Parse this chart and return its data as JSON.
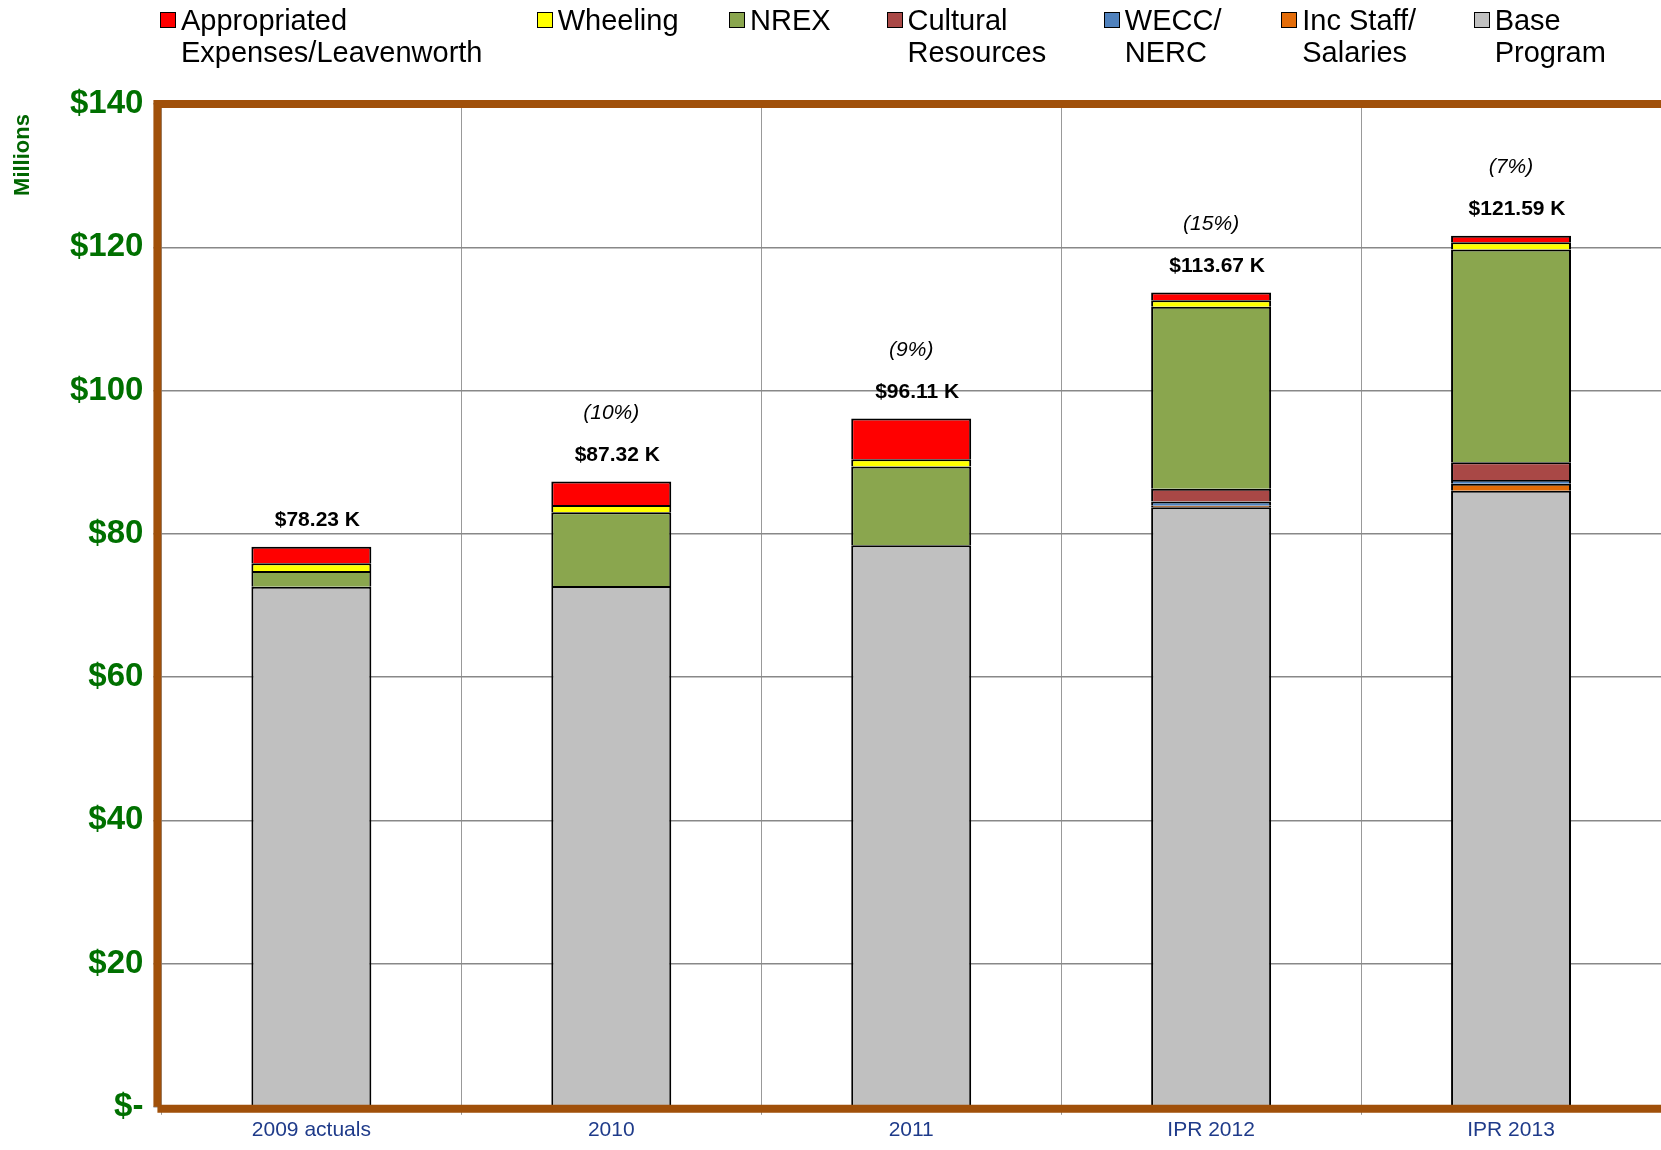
{
  "chart_data": {
    "type": "bar",
    "stacked": true,
    "ylabel": "Millions",
    "categories": [
      "2009 actuals",
      "2010",
      "2011",
      "IPR 2012",
      "IPR 2013"
    ],
    "series": [
      {
        "name": "Base Program",
        "color": "#c0c0c0",
        "values": [
          72.6,
          72.7,
          78.4,
          83.7,
          86.0
        ]
      },
      {
        "name": "Inc Staff/ Salaries",
        "color": "#e36c09",
        "values": [
          null,
          null,
          null,
          0.2,
          1.0
        ]
      },
      {
        "name": "WECC/ NERC",
        "color": "#4f81bd",
        "values": [
          null,
          null,
          null,
          0.6,
          0.5
        ]
      },
      {
        "name": "Cultural Resources",
        "color": "#a94846",
        "values": [
          null,
          null,
          null,
          1.8,
          2.5
        ]
      },
      {
        "name": "NREX",
        "color": "#8aa64e",
        "values": [
          2.2,
          10.3,
          11.0,
          25.4,
          29.7
        ]
      },
      {
        "name": "Wheeling",
        "color": "#ffff00",
        "values": [
          1.1,
          1.0,
          1.0,
          0.9,
          1.0
        ]
      },
      {
        "name": "Appropriated Expenses/Leavenworth",
        "color": "#ff0000",
        "values": [
          2.3,
          3.3,
          5.7,
          1.1,
          0.9
        ]
      }
    ],
    "ylim": [
      0,
      140
    ],
    "yticks": [
      {
        "value": 0,
        "label": "$-"
      },
      {
        "value": 20,
        "label": "$20"
      },
      {
        "value": 40,
        "label": "$40"
      },
      {
        "value": 60,
        "label": "$60"
      },
      {
        "value": 80,
        "label": "$80"
      },
      {
        "value": 100,
        "label": "$100"
      },
      {
        "value": 120,
        "label": "$120"
      },
      {
        "value": 140,
        "label": "$140"
      }
    ],
    "grid": true,
    "legend": "top",
    "totals": [
      "$78.23 K",
      "$87.32 K",
      "$96.11 K",
      "$113.67 K",
      "$121.59 K"
    ],
    "annotations": [
      "(10%)",
      "(9%)",
      "(15%)",
      "(7%)"
    ]
  }
}
